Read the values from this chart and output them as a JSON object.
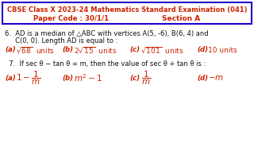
{
  "bg_color": "#ffffff",
  "header_text1": "CBSE Class X 2023-24 Mathematics Standard Examination (041)",
  "header_text2_left": "Paper Code : 30/1/1",
  "header_text2_right": "Section A",
  "header_color": "#cc2200",
  "header_bg": "#ffffff",
  "border_color": "#2200cc",
  "body_color": "#111111",
  "red_color": "#cc2200",
  "q6_line1": "6.  AD is a median of △ABC with vertices A(5, -6), B(6, 4) and",
  "q6_line2": "     C(0, 0). Length AD is equal to :",
  "q7_line1": "  7.  If sec θ − tan θ = m, then the value of sec θ + tan θ is :"
}
